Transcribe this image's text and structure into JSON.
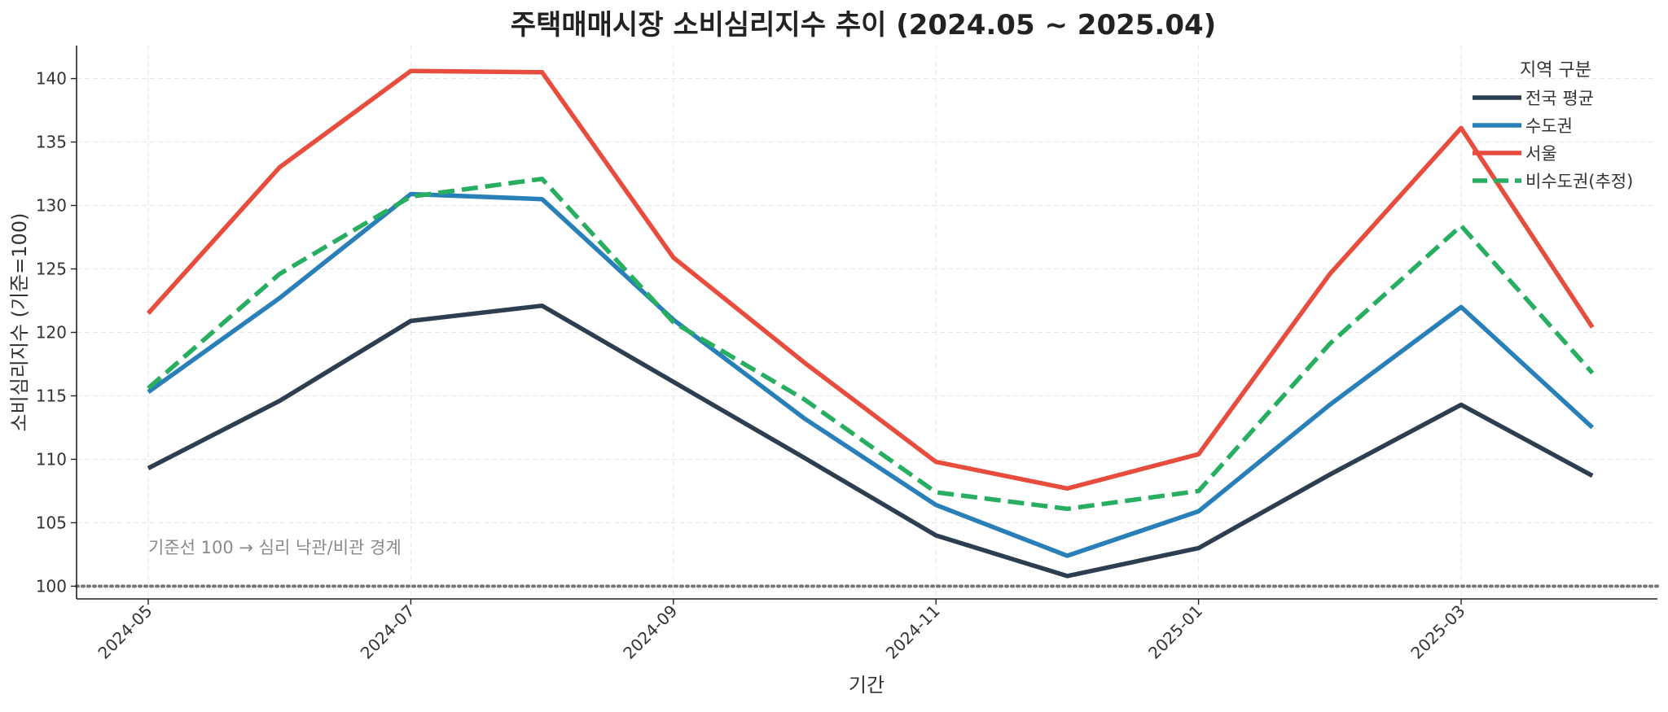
{
  "chart_data": {
    "type": "line",
    "title": "주택매매시장 소비심리지수 추이 (2024.05 ~ 2025.04)",
    "xlabel": "기간",
    "ylabel": "소비심리지수 (기준=100)",
    "x": [
      "2024-05",
      "2024-06",
      "2024-07",
      "2024-08",
      "2024-09",
      "2024-10",
      "2024-11",
      "2024-12",
      "2025-01",
      "2025-02",
      "2025-03",
      "2025-04"
    ],
    "x_tick_labels": [
      "2024-05",
      "2024-07",
      "2024-09",
      "2024-11",
      "2025-01",
      "2025-03"
    ],
    "ylim": [
      99,
      142.6
    ],
    "y_ticks": [
      100,
      105,
      110,
      115,
      120,
      125,
      130,
      135,
      140
    ],
    "grid": true,
    "legend": {
      "title": "지역 구분",
      "placement": "top-right"
    },
    "series": [
      {
        "name": "전국 평균",
        "color": "#2c3e50",
        "style": "solid",
        "values": [
          109.3,
          114.6,
          120.9,
          122.1,
          116.1,
          110.1,
          104.0,
          100.8,
          103.0,
          108.8,
          114.3,
          108.7
        ]
      },
      {
        "name": "수도권",
        "color": "#2980b9",
        "style": "solid",
        "values": [
          115.3,
          122.7,
          130.9,
          130.5,
          121.0,
          113.2,
          106.4,
          102.4,
          105.9,
          114.3,
          122.0,
          112.5
        ]
      },
      {
        "name": "서울",
        "color": "#e74c3c",
        "style": "solid",
        "values": [
          121.5,
          133.0,
          140.6,
          140.5,
          125.9,
          117.6,
          109.8,
          107.7,
          110.4,
          124.6,
          136.1,
          120.4
        ]
      },
      {
        "name": "비수도권(추정)",
        "color": "#27ae60",
        "style": "dashed",
        "values": [
          115.6,
          124.6,
          130.7,
          132.1,
          120.8,
          114.7,
          107.4,
          106.1,
          107.5,
          119.1,
          128.4,
          116.8
        ]
      }
    ],
    "reference_line": {
      "value": 100,
      "color": "#777777",
      "style": "dotted"
    },
    "annotation": "기준선 100 → 심리 낙관/비관 경계"
  }
}
